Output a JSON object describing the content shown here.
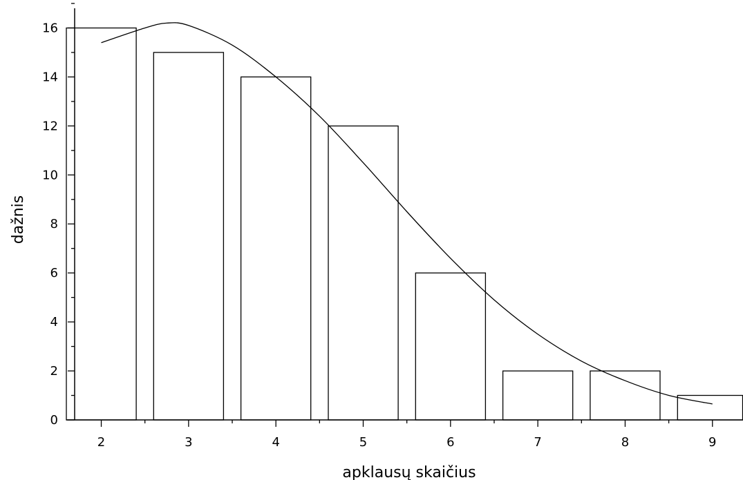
{
  "chart_data": {
    "type": "bar",
    "xlabel": "apklausų skaičius",
    "ylabel": "dažnis",
    "xlim": [
      1.6,
      9.35
    ],
    "ylim": [
      0,
      17
    ],
    "x_ticks": [
      2,
      3,
      4,
      5,
      6,
      7,
      8,
      9
    ],
    "y_ticks": [
      0,
      2,
      4,
      6,
      8,
      10,
      12,
      14,
      16
    ],
    "categories": [
      2,
      3,
      4,
      5,
      6,
      7,
      8,
      9
    ],
    "values": [
      16,
      15,
      14,
      12,
      6,
      2,
      2,
      1
    ],
    "bar_width": 0.8,
    "fit_curve": {
      "x": [
        2.0,
        2.5,
        2.75,
        3.0,
        3.5,
        4.0,
        4.5,
        5.0,
        5.5,
        6.0,
        6.5,
        7.0,
        7.5,
        8.0,
        8.5,
        9.0
      ],
      "y": [
        15.4,
        16.0,
        16.2,
        16.1,
        15.3,
        14.0,
        12.4,
        10.5,
        8.5,
        6.6,
        4.9,
        3.5,
        2.4,
        1.6,
        1.0,
        0.65
      ]
    },
    "grid": false,
    "legend": "none"
  }
}
